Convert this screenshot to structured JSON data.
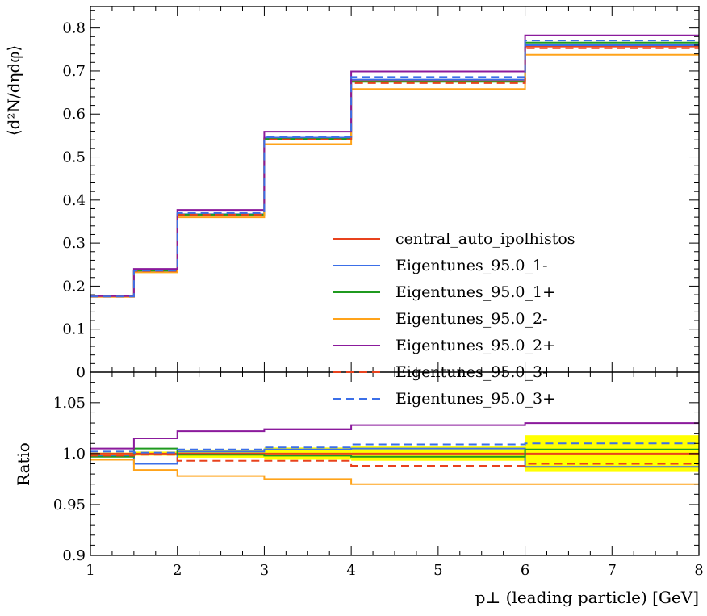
{
  "chart_data": [
    {
      "type": "line",
      "panel": "main",
      "ylabel": "⟨d²N/dηdφ⟩",
      "xlim": [
        1,
        8
      ],
      "ylim": [
        0,
        0.85
      ],
      "yticks": [
        0,
        0.1,
        0.2,
        0.3,
        0.4,
        0.5,
        0.6,
        0.7,
        0.8
      ],
      "ytick_labels": [
        "0",
        "0.1",
        "0.2",
        "0.3",
        "0.4",
        "0.5",
        "0.6",
        "0.7",
        "0.8"
      ],
      "bin_edges": [
        1,
        1.5,
        2,
        3,
        4,
        6,
        8
      ],
      "legend_position": "center-right",
      "series": [
        {
          "name": "central_auto_ipolhistos",
          "color": "#e8421d",
          "dashed": false,
          "values": [
            0.176,
            0.235,
            0.366,
            0.543,
            0.677,
            0.757
          ]
        },
        {
          "name": "Eigentunes_95.0_1-",
          "color": "#3b6fe8",
          "dashed": false,
          "values": [
            0.176,
            0.233,
            0.367,
            0.545,
            0.68,
            0.76
          ]
        },
        {
          "name": "Eigentunes_95.0_1+",
          "color": "#1f9a1f",
          "dashed": false,
          "values": [
            0.176,
            0.236,
            0.366,
            0.542,
            0.675,
            0.766
          ]
        },
        {
          "name": "Eigentunes_95.0_2-",
          "color": "#ffa31a",
          "dashed": false,
          "values": [
            0.175,
            0.232,
            0.36,
            0.53,
            0.658,
            0.738
          ]
        },
        {
          "name": "Eigentunes_95.0_2+",
          "color": "#8b1a9c",
          "dashed": false,
          "values": [
            0.177,
            0.24,
            0.377,
            0.559,
            0.699,
            0.783
          ]
        },
        {
          "name": "Eigentunes_95.0_3-",
          "color": "#e8421d",
          "dashed": true,
          "values": [
            0.176,
            0.235,
            0.366,
            0.541,
            0.672,
            0.753
          ]
        },
        {
          "name": "Eigentunes_95.0_3+",
          "color": "#3b6fe8",
          "dashed": true,
          "values": [
            0.176,
            0.236,
            0.37,
            0.547,
            0.686,
            0.771
          ]
        }
      ]
    },
    {
      "type": "line",
      "panel": "ratio",
      "ylabel": "Ratio",
      "xlabel": "p⊥ (leading particle) [GeV]",
      "xlim": [
        1,
        8
      ],
      "ylim": [
        0.9,
        1.08
      ],
      "xticks": [
        1,
        2,
        3,
        4,
        5,
        6,
        7,
        8
      ],
      "xtick_labels": [
        "1",
        "2",
        "3",
        "4",
        "5",
        "6",
        "7",
        "8"
      ],
      "yticks": [
        0.9,
        0.95,
        1.0,
        1.05
      ],
      "ytick_labels": [
        "0.9",
        "0.95",
        "1.0",
        "1.05"
      ],
      "bin_edges": [
        1,
        1.5,
        2,
        3,
        4,
        6,
        8
      ],
      "band": {
        "color": "#ffff00",
        "lower": [
          0.999,
          0.998,
          0.996,
          0.994,
          0.993,
          0.982
        ],
        "upper": [
          1.001,
          1.002,
          1.004,
          1.006,
          1.007,
          1.018
        ]
      },
      "series": [
        {
          "name": "central_auto_ipolhistos",
          "color": "#e8421d",
          "dashed": false,
          "values": [
            1.0,
            1.0,
            1.0,
            1.0,
            1.0,
            1.0
          ]
        },
        {
          "name": "Eigentunes_95.0_1-",
          "color": "#3b6fe8",
          "dashed": false,
          "values": [
            0.998,
            0.99,
            1.002,
            1.004,
            1.005,
            0.987
          ]
        },
        {
          "name": "Eigentunes_95.0_1+",
          "color": "#1f9a1f",
          "dashed": false,
          "values": [
            0.997,
            1.005,
            0.999,
            0.998,
            0.997,
            1.004
          ]
        },
        {
          "name": "Eigentunes_95.0_2-",
          "color": "#ffa31a",
          "dashed": false,
          "values": [
            0.994,
            0.984,
            0.978,
            0.975,
            0.97,
            0.97
          ]
        },
        {
          "name": "Eigentunes_95.0_2+",
          "color": "#8b1a9c",
          "dashed": false,
          "values": [
            1.005,
            1.015,
            1.022,
            1.024,
            1.028,
            1.03
          ]
        },
        {
          "name": "Eigentunes_95.0_3-",
          "color": "#e8421d",
          "dashed": true,
          "values": [
            0.998,
            0.999,
            0.993,
            0.993,
            0.988,
            0.99
          ]
        },
        {
          "name": "Eigentunes_95.0_3+",
          "color": "#3b6fe8",
          "dashed": true,
          "values": [
            1.002,
            1.001,
            1.004,
            1.006,
            1.009,
            1.01
          ]
        }
      ]
    }
  ]
}
